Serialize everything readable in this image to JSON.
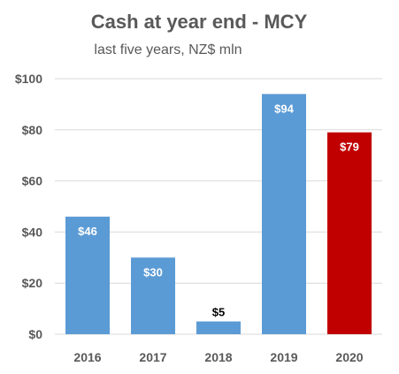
{
  "chart_data": {
    "type": "bar",
    "title": "Cash at year end - MCY",
    "subtitle": "last five years, NZ$ mln",
    "categories": [
      "2016",
      "2017",
      "2018",
      "2019",
      "2020"
    ],
    "values": [
      46,
      30,
      5,
      94,
      79
    ],
    "data_labels": [
      "$46",
      "$30",
      "$5",
      "$94",
      "$79"
    ],
    "y_ticks": [
      "$0",
      "$20",
      "$40",
      "$60",
      "$80",
      "$100"
    ],
    "ylim": [
      0,
      100
    ],
    "grid": true,
    "legend": "none",
    "colors": {
      "default_bar": "#5B9BD5",
      "highlight_bar": "#C00000",
      "highlight_index": 4,
      "label_inside": "#ffffff",
      "label_outside": "#000000",
      "grid": "#D9D9D9",
      "text": "#595959"
    }
  }
}
